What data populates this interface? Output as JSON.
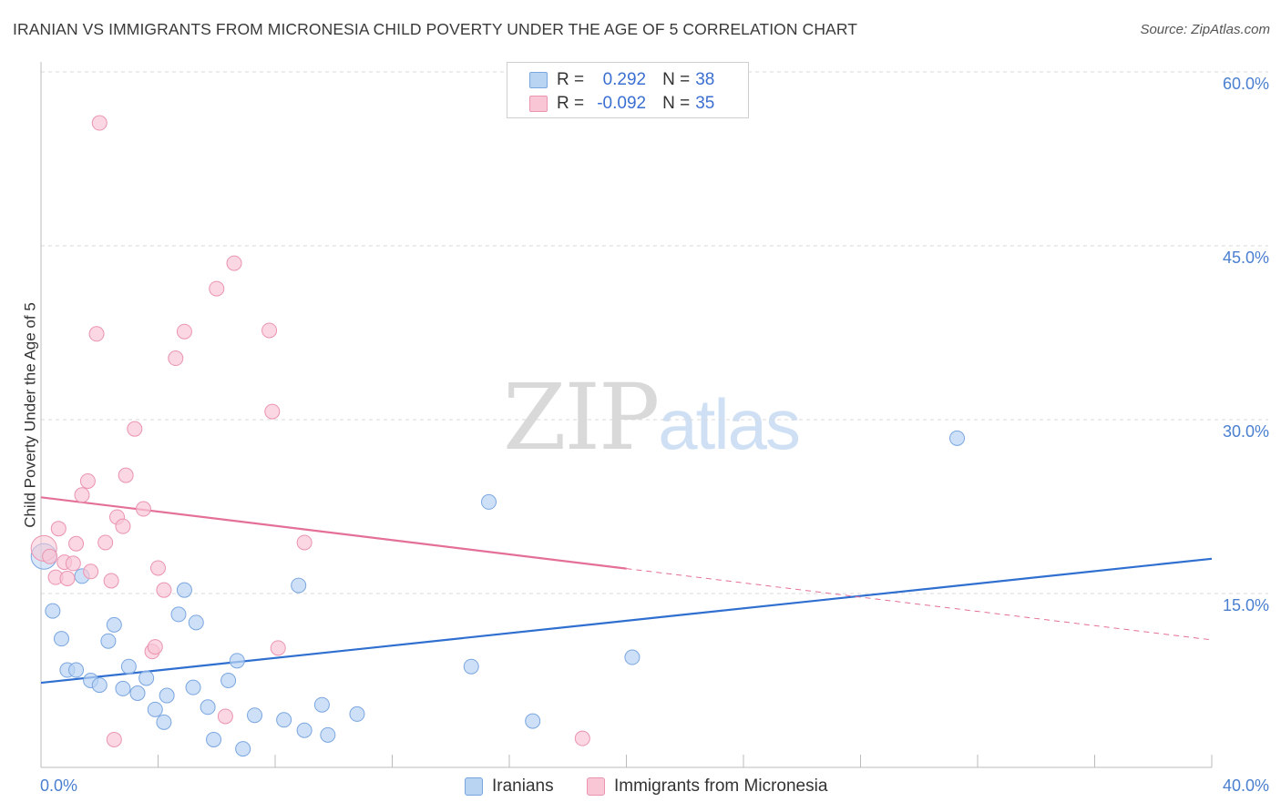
{
  "title": "IRANIAN VS IMMIGRANTS FROM MICRONESIA CHILD POVERTY UNDER THE AGE OF 5 CORRELATION CHART",
  "source": "Source: ZipAtlas.com",
  "watermark": {
    "zip": "ZIP",
    "atlas": "atlas"
  },
  "colors": {
    "blue_fill": "#b9d3f3",
    "blue_stroke": "#7aa6e0",
    "blue_line": "#2f6fd0",
    "pink_fill": "#f8c6d5",
    "pink_stroke": "#eb94b0",
    "pink_line": "#e46f98",
    "grid": "#d9d9d9",
    "tick_text": "#4a7fd0"
  },
  "legend": {
    "rows": [
      {
        "r_label": "R =",
        "r_value": "0.292",
        "n_label": "N =",
        "n_value": "38"
      },
      {
        "r_label": "R =",
        "r_value": "-0.092",
        "n_label": "N =",
        "n_value": "35"
      }
    ]
  },
  "bottom_legend": [
    "Iranians",
    "Immigrants from Micronesia"
  ],
  "chart_data": {
    "type": "scatter",
    "title": "IRANIAN VS IMMIGRANTS FROM MICRONESIA CHILD POVERTY UNDER THE AGE OF 5 CORRELATION CHART",
    "xlabel": "",
    "ylabel": "Child Poverty Under the Age of 5",
    "xlim": [
      0,
      40
    ],
    "ylim": [
      0,
      60
    ],
    "x_tick_labels": [
      "0.0%",
      "40.0%"
    ],
    "y_ticks": [
      15,
      30,
      45,
      60
    ],
    "y_tick_labels": [
      "15.0%",
      "30.0%",
      "45.0%",
      "60.0%"
    ],
    "series": [
      {
        "name": "Iranians",
        "r": 0.292,
        "n": 38,
        "trend": {
          "x": [
            0,
            40
          ],
          "y": [
            7.3,
            18.0
          ],
          "dashed_from_x": null
        },
        "points": [
          {
            "x": 0.1,
            "y": 18.2,
            "big": true
          },
          {
            "x": 0.4,
            "y": 13.5
          },
          {
            "x": 0.7,
            "y": 11.1
          },
          {
            "x": 0.9,
            "y": 8.4
          },
          {
            "x": 1.2,
            "y": 8.4
          },
          {
            "x": 1.4,
            "y": 16.5
          },
          {
            "x": 1.7,
            "y": 7.5
          },
          {
            "x": 2.0,
            "y": 7.1
          },
          {
            "x": 2.3,
            "y": 10.9
          },
          {
            "x": 2.5,
            "y": 12.3
          },
          {
            "x": 2.8,
            "y": 6.8
          },
          {
            "x": 3.0,
            "y": 8.7
          },
          {
            "x": 3.3,
            "y": 6.4
          },
          {
            "x": 3.6,
            "y": 7.7
          },
          {
            "x": 3.9,
            "y": 5.0
          },
          {
            "x": 4.2,
            "y": 3.9
          },
          {
            "x": 4.3,
            "y": 6.2
          },
          {
            "x": 4.7,
            "y": 13.2
          },
          {
            "x": 4.9,
            "y": 15.3
          },
          {
            "x": 5.2,
            "y": 6.9
          },
          {
            "x": 5.3,
            "y": 12.5
          },
          {
            "x": 5.7,
            "y": 5.2
          },
          {
            "x": 5.9,
            "y": 2.4
          },
          {
            "x": 6.4,
            "y": 7.5
          },
          {
            "x": 6.7,
            "y": 9.2
          },
          {
            "x": 6.9,
            "y": 1.6
          },
          {
            "x": 7.3,
            "y": 4.5
          },
          {
            "x": 8.3,
            "y": 4.1
          },
          {
            "x": 8.8,
            "y": 15.7
          },
          {
            "x": 9.0,
            "y": 3.2
          },
          {
            "x": 9.6,
            "y": 5.4
          },
          {
            "x": 9.8,
            "y": 2.8
          },
          {
            "x": 10.8,
            "y": 4.6
          },
          {
            "x": 14.7,
            "y": 8.7
          },
          {
            "x": 15.3,
            "y": 22.9
          },
          {
            "x": 16.8,
            "y": 4.0
          },
          {
            "x": 20.2,
            "y": 9.5
          },
          {
            "x": 31.3,
            "y": 28.4
          }
        ]
      },
      {
        "name": "Immigrants from Micronesia",
        "r": -0.092,
        "n": 35,
        "trend": {
          "x": [
            0,
            40
          ],
          "y": [
            23.3,
            11.0
          ],
          "dashed_from_x": 20.0
        },
        "points": [
          {
            "x": 0.1,
            "y": 18.9,
            "big": true
          },
          {
            "x": 0.3,
            "y": 18.2
          },
          {
            "x": 0.5,
            "y": 16.4
          },
          {
            "x": 0.6,
            "y": 20.6
          },
          {
            "x": 0.8,
            "y": 17.7
          },
          {
            "x": 0.9,
            "y": 16.3
          },
          {
            "x": 1.1,
            "y": 17.6
          },
          {
            "x": 1.2,
            "y": 19.3
          },
          {
            "x": 1.4,
            "y": 23.5
          },
          {
            "x": 1.6,
            "y": 24.7
          },
          {
            "x": 1.7,
            "y": 16.9
          },
          {
            "x": 1.9,
            "y": 37.4
          },
          {
            "x": 2.0,
            "y": 55.6
          },
          {
            "x": 2.2,
            "y": 19.4
          },
          {
            "x": 2.4,
            "y": 16.1
          },
          {
            "x": 2.5,
            "y": 2.4
          },
          {
            "x": 2.6,
            "y": 21.6
          },
          {
            "x": 2.8,
            "y": 20.8
          },
          {
            "x": 2.9,
            "y": 25.2
          },
          {
            "x": 3.2,
            "y": 29.2
          },
          {
            "x": 3.5,
            "y": 22.3
          },
          {
            "x": 3.8,
            "y": 10.0
          },
          {
            "x": 3.9,
            "y": 10.4
          },
          {
            "x": 4.0,
            "y": 17.2
          },
          {
            "x": 4.2,
            "y": 15.3
          },
          {
            "x": 4.6,
            "y": 35.3
          },
          {
            "x": 4.9,
            "y": 37.6
          },
          {
            "x": 6.0,
            "y": 41.3
          },
          {
            "x": 6.3,
            "y": 4.4
          },
          {
            "x": 6.6,
            "y": 43.5
          },
          {
            "x": 7.8,
            "y": 37.7
          },
          {
            "x": 7.9,
            "y": 30.7
          },
          {
            "x": 8.1,
            "y": 10.3
          },
          {
            "x": 9.0,
            "y": 19.4
          },
          {
            "x": 18.5,
            "y": 2.5
          }
        ]
      }
    ]
  }
}
